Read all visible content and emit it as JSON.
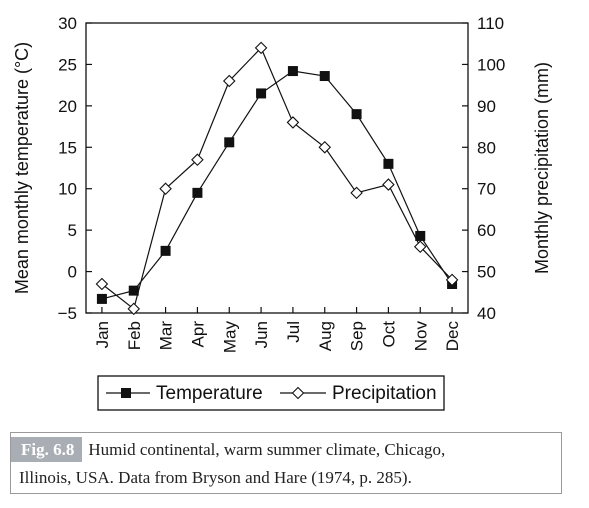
{
  "chart_data": {
    "type": "line",
    "categories": [
      "Jan",
      "Feb",
      "Mar",
      "Apr",
      "May",
      "Jun",
      "Jul",
      "Aug",
      "Sep",
      "Oct",
      "Nov",
      "Dec"
    ],
    "series": [
      {
        "name": "Temperature",
        "axis": "left",
        "marker": "filled-square",
        "values": [
          -3.3,
          -2.3,
          2.5,
          9.5,
          15.6,
          21.5,
          24.2,
          23.6,
          19.0,
          13.0,
          4.3,
          -1.5
        ]
      },
      {
        "name": "Precipitation",
        "axis": "right",
        "marker": "open-diamond",
        "values": [
          47,
          41,
          70,
          77,
          96,
          104,
          86,
          80,
          69,
          71,
          56,
          48
        ]
      }
    ],
    "ylabel": "Mean monthly temperature (°C)",
    "y2label": "Monthly precipitation (mm)",
    "ylim": [
      -5,
      30
    ],
    "y2lim": [
      40,
      110
    ],
    "yticks": [
      -5,
      0,
      5,
      10,
      15,
      20,
      25,
      30
    ],
    "y2ticks": [
      40,
      50,
      60,
      70,
      80,
      90,
      100,
      110
    ],
    "grid": false,
    "legend_placement": "bottom"
  },
  "caption": {
    "fig_label": "Fig. 6.8",
    "line1": "Humid continental, warm summer climate, Chicago,",
    "line2": "Illinois, USA. Data from Bryson and Hare (1974, p. 285)."
  }
}
